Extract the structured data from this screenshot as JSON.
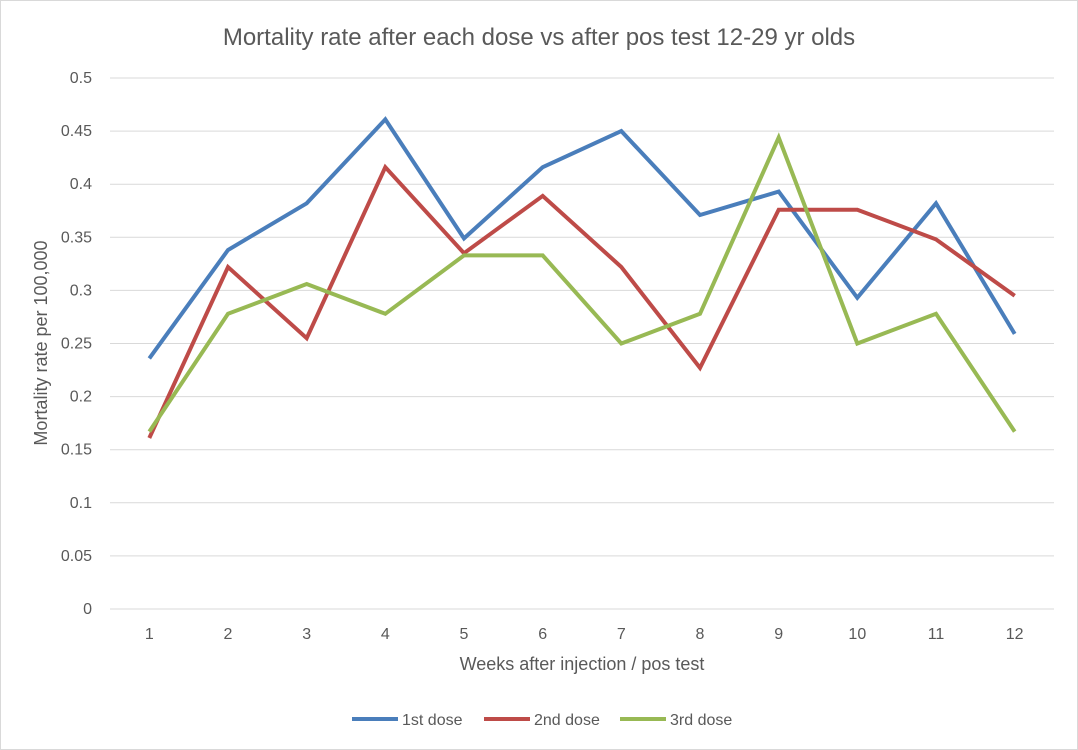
{
  "chart_data": {
    "type": "line",
    "title": "Mortality rate after each dose vs after pos test 12-29 yr olds",
    "xlabel": "Weeks after injection / pos test",
    "ylabel": "Mortality rate per 100,000",
    "categories": [
      "1",
      "2",
      "3",
      "4",
      "5",
      "6",
      "7",
      "8",
      "9",
      "10",
      "11",
      "12"
    ],
    "ylim": [
      0,
      0.5
    ],
    "yticks": [
      "0",
      "0.05",
      "0.1",
      "0.15",
      "0.2",
      "0.25",
      "0.3",
      "0.35",
      "0.4",
      "0.45",
      "0.5"
    ],
    "grid": true,
    "legend_position": "bottom",
    "series": [
      {
        "name": "1st dose",
        "color": "#4a7ebb",
        "values": [
          0.236,
          0.338,
          0.382,
          0.461,
          0.349,
          0.416,
          0.45,
          0.371,
          0.393,
          0.293,
          0.382,
          0.259
        ]
      },
      {
        "name": "2nd dose",
        "color": "#be4b48",
        "values": [
          0.161,
          0.322,
          0.255,
          0.416,
          0.335,
          0.389,
          0.322,
          0.227,
          0.376,
          0.376,
          0.348,
          0.295
        ]
      },
      {
        "name": "3rd dose",
        "color": "#98b954",
        "values": [
          0.167,
          0.278,
          0.306,
          0.278,
          0.333,
          0.333,
          0.25,
          0.278,
          0.444,
          0.25,
          0.278,
          0.167
        ]
      }
    ]
  }
}
